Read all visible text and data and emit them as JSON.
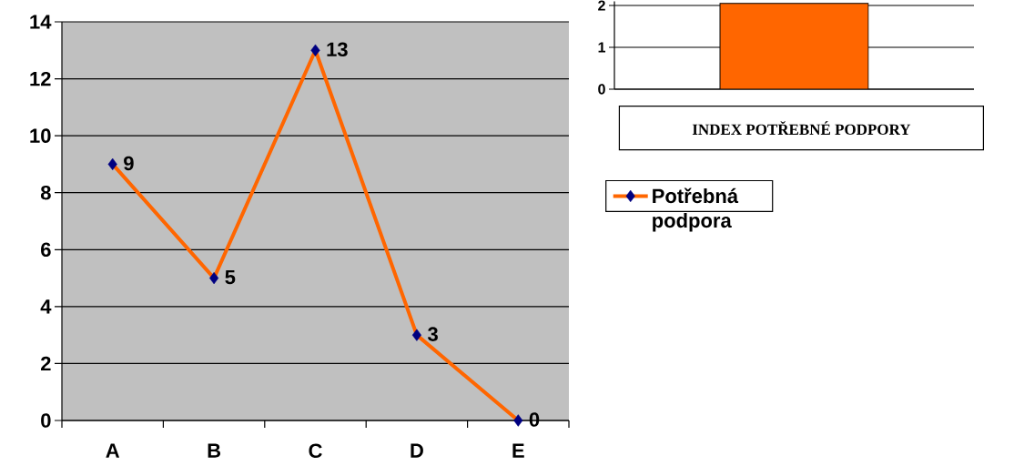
{
  "chart_data": [
    {
      "type": "line",
      "categories": [
        "A",
        "B",
        "C",
        "D",
        "E"
      ],
      "series": [
        {
          "name": "Potřebná podpora",
          "color": "#ff6600",
          "values": [
            9,
            5,
            13,
            3,
            0
          ]
        }
      ],
      "ylim": [
        0,
        14
      ],
      "yticks": [
        0,
        2,
        4,
        6,
        8,
        10,
        12,
        14
      ],
      "grid": "y",
      "marker": "diamond",
      "data_labels": true,
      "legend": "right"
    },
    {
      "type": "bar",
      "title": "INDEX POTŘEBNÉ PODPORY",
      "categories": [
        null
      ],
      "series": [
        {
          "color": "#ff6600",
          "values": [
            2.05
          ]
        }
      ],
      "ylim": [
        0,
        2.1
      ],
      "yticks": [
        0,
        1,
        2
      ],
      "grid": "y",
      "tick_labels": "y"
    }
  ]
}
